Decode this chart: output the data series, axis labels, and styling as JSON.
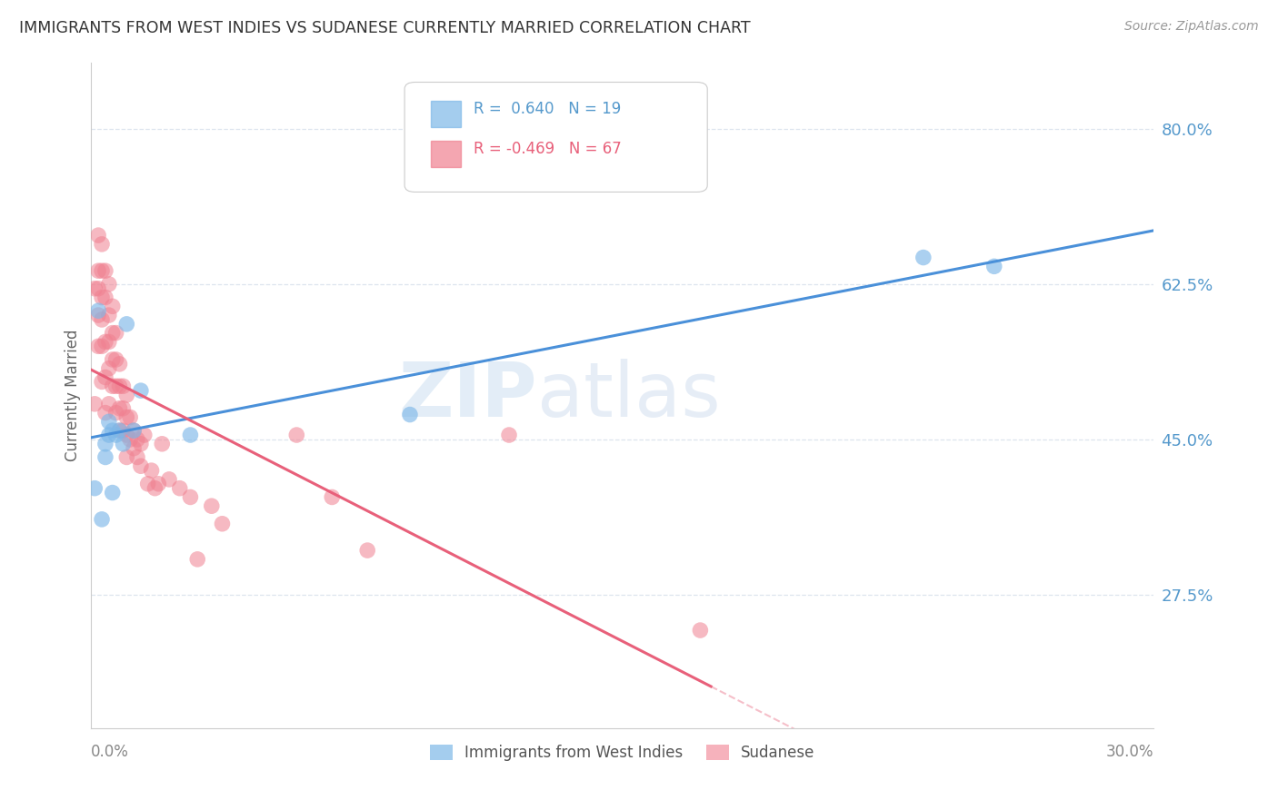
{
  "title": "IMMIGRANTS FROM WEST INDIES VS SUDANESE CURRENTLY MARRIED CORRELATION CHART",
  "source": "Source: ZipAtlas.com",
  "ylabel": "Currently Married",
  "y_ticks": [
    0.275,
    0.45,
    0.625,
    0.8
  ],
  "y_tick_labels": [
    "27.5%",
    "45.0%",
    "62.5%",
    "80.0%"
  ],
  "y_min": 0.125,
  "y_max": 0.875,
  "x_min": 0.0,
  "x_max": 0.3,
  "legend_label1": "Immigrants from West Indies",
  "legend_label2": "Sudanese",
  "west_indies_color": "#7eb8e8",
  "sudanese_color": "#f08090",
  "line_west_indies": "#4a90d9",
  "line_sudanese": "#e8607a",
  "background_color": "#ffffff",
  "watermark_zip": "ZIP",
  "watermark_atlas": "atlas",
  "r_wi": "0.640",
  "n_wi": "19",
  "r_su": "-0.469",
  "n_su": "67",
  "west_indies_x": [
    0.001,
    0.002,
    0.003,
    0.004,
    0.004,
    0.005,
    0.005,
    0.006,
    0.006,
    0.007,
    0.008,
    0.009,
    0.01,
    0.012,
    0.014,
    0.028,
    0.09,
    0.235,
    0.255
  ],
  "west_indies_y": [
    0.395,
    0.595,
    0.36,
    0.43,
    0.445,
    0.455,
    0.47,
    0.46,
    0.39,
    0.455,
    0.46,
    0.445,
    0.58,
    0.46,
    0.505,
    0.455,
    0.478,
    0.655,
    0.645
  ],
  "sudanese_x": [
    0.001,
    0.001,
    0.002,
    0.002,
    0.002,
    0.002,
    0.002,
    0.003,
    0.003,
    0.003,
    0.003,
    0.003,
    0.003,
    0.004,
    0.004,
    0.004,
    0.004,
    0.004,
    0.005,
    0.005,
    0.005,
    0.005,
    0.005,
    0.006,
    0.006,
    0.006,
    0.006,
    0.007,
    0.007,
    0.007,
    0.007,
    0.008,
    0.008,
    0.008,
    0.008,
    0.009,
    0.009,
    0.009,
    0.01,
    0.01,
    0.01,
    0.01,
    0.011,
    0.011,
    0.012,
    0.012,
    0.013,
    0.013,
    0.014,
    0.014,
    0.015,
    0.016,
    0.017,
    0.018,
    0.019,
    0.02,
    0.022,
    0.025,
    0.028,
    0.03,
    0.034,
    0.037,
    0.058,
    0.068,
    0.078,
    0.118,
    0.172
  ],
  "sudanese_y": [
    0.62,
    0.49,
    0.68,
    0.64,
    0.62,
    0.59,
    0.555,
    0.67,
    0.64,
    0.61,
    0.585,
    0.555,
    0.515,
    0.64,
    0.61,
    0.56,
    0.52,
    0.48,
    0.625,
    0.59,
    0.56,
    0.53,
    0.49,
    0.6,
    0.57,
    0.54,
    0.51,
    0.57,
    0.54,
    0.51,
    0.48,
    0.535,
    0.51,
    0.485,
    0.46,
    0.51,
    0.485,
    0.46,
    0.5,
    0.475,
    0.455,
    0.43,
    0.475,
    0.45,
    0.46,
    0.44,
    0.45,
    0.43,
    0.445,
    0.42,
    0.455,
    0.4,
    0.415,
    0.395,
    0.4,
    0.445,
    0.405,
    0.395,
    0.385,
    0.315,
    0.375,
    0.355,
    0.455,
    0.385,
    0.325,
    0.455,
    0.235
  ],
  "grid_color": "#dde4ee",
  "tick_color": "#5599cc",
  "legend_r1_color": "#5599cc",
  "legend_r2_color": "#e8607a"
}
